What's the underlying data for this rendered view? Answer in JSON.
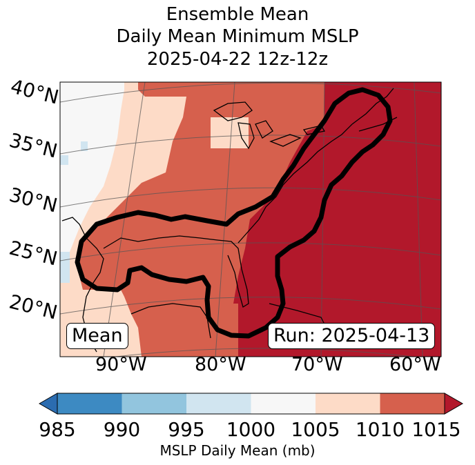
{
  "title": {
    "line1": "Ensemble Mean",
    "line2": "Daily Mean Minimum MSLP",
    "line3": "2025-04-22 12z-12z"
  },
  "map": {
    "lat_labels": [
      "40°N",
      "35°N",
      "30°N",
      "25°N",
      "20°N"
    ],
    "lon_labels": [
      "90°W",
      "80°W",
      "70°W",
      "60°W"
    ],
    "mode_label": "Mean",
    "run_label": "Run: 2025-04-13"
  },
  "colorbar": {
    "ticks": [
      "985",
      "990",
      "995",
      "1000",
      "1005",
      "1010",
      "1015"
    ],
    "label": "MSLP Daily Mean (mb)",
    "colors": [
      "#2b6cb0",
      "#3d8ac2",
      "#92c5de",
      "#d1e5f0",
      "#f7f7f7",
      "#fddbc7",
      "#d6604d",
      "#b2182b"
    ],
    "contour_color": "#000000"
  }
}
